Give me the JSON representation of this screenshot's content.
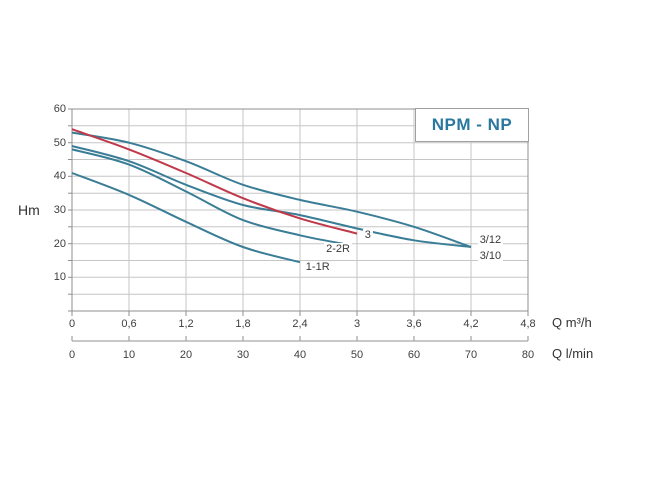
{
  "page": {
    "background_color": "#ffffff"
  },
  "chart_data": {
    "type": "line",
    "title": "NPM - NP",
    "title_color": "#2a78a0",
    "grid": true,
    "legend_position": "inline-labels",
    "y_axis": {
      "label": "Hm",
      "min": 0,
      "max": 60,
      "major_step": 10,
      "minor_step": 5,
      "tick_labels": [
        "10",
        "20",
        "30",
        "40",
        "50",
        "60"
      ]
    },
    "x_axis_primary": {
      "label": "Q m³/h",
      "min": 0,
      "max": 4.8,
      "step": 0.6,
      "tick_values": [
        0,
        0.6,
        1.2,
        1.8,
        2.4,
        3,
        3.6,
        4.2,
        4.8
      ],
      "tick_labels": [
        "0",
        "0,6",
        "1,2",
        "1,8",
        "2,4",
        "3",
        "3,6",
        "4,2",
        "4,8"
      ]
    },
    "x_axis_secondary": {
      "label": "Q l/min",
      "min": 0,
      "max": 80,
      "step": 10,
      "tick_values": [
        0,
        10,
        20,
        30,
        40,
        50,
        60,
        70,
        80
      ],
      "tick_labels": [
        "0",
        "10",
        "20",
        "30",
        "40",
        "50",
        "60",
        "70",
        "80"
      ]
    },
    "series": [
      {
        "name": "3/12",
        "color": "#3a7d96",
        "points": [
          [
            0,
            53
          ],
          [
            0.6,
            50
          ],
          [
            1.2,
            44.5
          ],
          [
            1.8,
            37.5
          ],
          [
            2.4,
            33
          ],
          [
            3,
            29.5
          ],
          [
            3.6,
            25
          ],
          [
            4.2,
            19
          ]
        ]
      },
      {
        "name": "3/10",
        "color": "#3a7d96",
        "points": [
          [
            0,
            49
          ],
          [
            0.6,
            44.5
          ],
          [
            1.2,
            37.5
          ],
          [
            1.8,
            31.5
          ],
          [
            2.4,
            28.5
          ],
          [
            3,
            24.5
          ],
          [
            3.6,
            21
          ],
          [
            4.2,
            19
          ]
        ]
      },
      {
        "name": "2-2R",
        "color": "#3a7d96",
        "points": [
          [
            0,
            48
          ],
          [
            0.6,
            43.5
          ],
          [
            1.2,
            35.5
          ],
          [
            1.8,
            27
          ],
          [
            2.4,
            22.5
          ],
          [
            2.85,
            20
          ]
        ]
      },
      {
        "name": "1-1R",
        "color": "#3a7d96",
        "points": [
          [
            0,
            41
          ],
          [
            0.6,
            34.5
          ],
          [
            1.2,
            26.5
          ],
          [
            1.8,
            19
          ],
          [
            2.4,
            14.5
          ]
        ]
      },
      {
        "name": "3",
        "color": "#c0394a",
        "points": [
          [
            0,
            54
          ],
          [
            0.6,
            48
          ],
          [
            1.2,
            41
          ],
          [
            1.8,
            33.5
          ],
          [
            2.4,
            27.5
          ],
          [
            3,
            23
          ]
        ]
      }
    ],
    "annotations": [
      {
        "label": "3",
        "q": 3.06,
        "h": 22.6,
        "align": "left"
      },
      {
        "label": "2-2R",
        "q": 2.8,
        "h": 18.3,
        "align": "center"
      },
      {
        "label": "1-1R",
        "q": 2.44,
        "h": 13.1,
        "align": "left"
      },
      {
        "label": "3/12",
        "q": 4.27,
        "h": 21.0,
        "align": "left"
      },
      {
        "label": "3/10",
        "q": 4.27,
        "h": 16.4,
        "align": "left"
      }
    ]
  }
}
